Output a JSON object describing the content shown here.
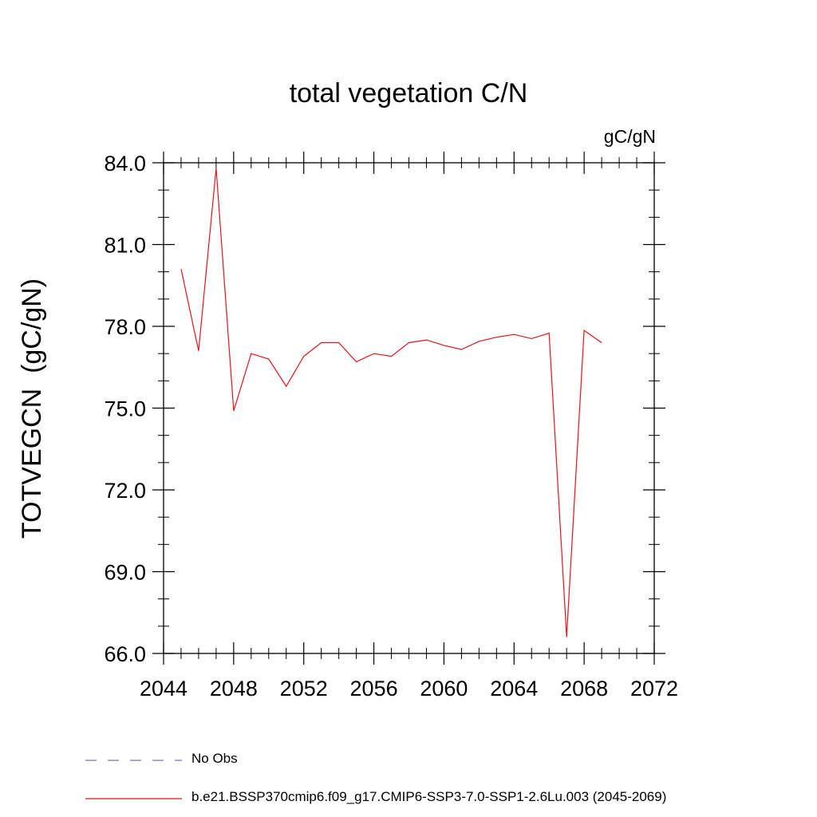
{
  "chart_data": {
    "type": "line",
    "title": "total vegetation C/N",
    "units_label": "gC/gN",
    "xlabel": "",
    "ylabel": "TOTVEGCN  (gC/gN)",
    "xlim": [
      2044,
      2072
    ],
    "ylim": [
      66.0,
      84.0
    ],
    "xticks": [
      2044,
      2048,
      2052,
      2056,
      2060,
      2064,
      2068,
      2072
    ],
    "xtick_labels": [
      "2044",
      "2048",
      "2052",
      "2056",
      "2060",
      "2064",
      "2068",
      "2072"
    ],
    "yticks": [
      66.0,
      69.0,
      72.0,
      75.0,
      78.0,
      81.0,
      84.0
    ],
    "ytick_labels": [
      "66.0",
      "69.0",
      "72.0",
      "75.0",
      "78.0",
      "81.0",
      "84.0"
    ],
    "grid": false,
    "legend_position": "bottom",
    "series": [
      {
        "name": "b.e21.BSSP370cmip6.f09_g17.CMIP6-SSP3-7.0-SSP1-2.6Lu.003 (2045-2069)",
        "color": "#e8131b",
        "style": "solid",
        "x": [
          2045,
          2046,
          2047,
          2048,
          2049,
          2050,
          2051,
          2052,
          2053,
          2054,
          2055,
          2056,
          2057,
          2058,
          2059,
          2060,
          2061,
          2062,
          2063,
          2064,
          2065,
          2066,
          2067,
          2068,
          2069
        ],
        "y": [
          80.1,
          77.1,
          83.8,
          74.9,
          77.0,
          76.8,
          75.8,
          76.9,
          77.4,
          77.4,
          76.7,
          77.0,
          76.9,
          77.4,
          77.5,
          77.3,
          77.15,
          77.45,
          77.6,
          77.7,
          77.55,
          77.75,
          66.6,
          77.85,
          77.4
        ]
      }
    ],
    "legend": [
      {
        "label": "No Obs",
        "color": "#7a6fb5",
        "style": "dashed"
      },
      {
        "label": "b.e21.BSSP370cmip6.f09_g17.CMIP6-SSP3-7.0-SSP1-2.6Lu.003 (2045-2069)",
        "color": "#e8131b",
        "style": "solid"
      }
    ]
  }
}
